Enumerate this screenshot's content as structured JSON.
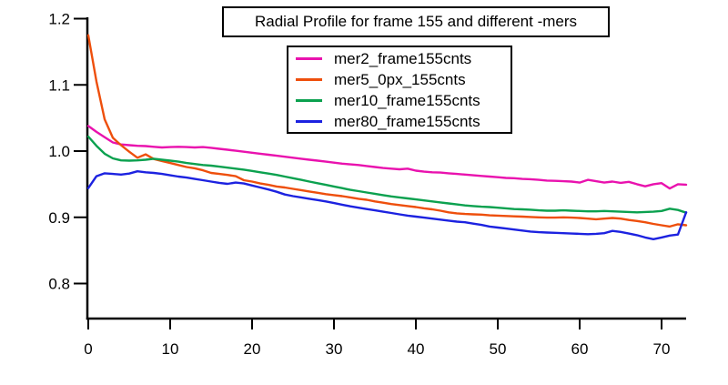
{
  "window": {
    "background": "#ffffff",
    "axis_color": "#000000",
    "text_color": "#000000"
  },
  "chart_data": {
    "type": "line",
    "title": "Radial Profile for frame 155 and different -mers",
    "xlabel": "",
    "ylabel": "",
    "xlim": [
      0,
      73
    ],
    "ylim": [
      0.747,
      1.2
    ],
    "grid": false,
    "legend_position": "top-center-inside",
    "xticks": [
      0,
      10,
      20,
      30,
      40,
      50,
      60,
      70
    ],
    "xtick_labels": [
      "0",
      "10",
      "20",
      "30",
      "40",
      "50",
      "60",
      "70"
    ],
    "yticks": [
      0.8,
      0.9,
      1.0,
      1.1,
      1.2
    ],
    "ytick_labels": [
      "0.8",
      "0.9",
      "1.0",
      "1.1",
      "1.2"
    ],
    "x": [
      0,
      1,
      2,
      3,
      4,
      5,
      6,
      7,
      8,
      9,
      10,
      11,
      12,
      13,
      14,
      15,
      16,
      17,
      18,
      19,
      20,
      21,
      22,
      23,
      24,
      25,
      26,
      27,
      28,
      29,
      30,
      31,
      32,
      33,
      34,
      35,
      36,
      37,
      38,
      39,
      40,
      41,
      42,
      43,
      44,
      45,
      46,
      47,
      48,
      49,
      50,
      51,
      52,
      53,
      54,
      55,
      56,
      57,
      58,
      59,
      60,
      61,
      62,
      63,
      64,
      65,
      66,
      67,
      68,
      69,
      70,
      71,
      72,
      73
    ],
    "series": [
      {
        "name": "mer2_frame155cnts",
        "color": "#E912AE",
        "values": [
          1.038,
          1.029,
          1.021,
          1.013,
          1.01,
          1.009,
          1.008,
          1.0075,
          1.0065,
          1.0055,
          1.006,
          1.0065,
          1.006,
          1.0055,
          1.006,
          1.005,
          1.0035,
          1.002,
          1.0005,
          0.999,
          0.9975,
          0.996,
          0.9945,
          0.993,
          0.9915,
          0.99,
          0.9885,
          0.987,
          0.9855,
          0.984,
          0.9825,
          0.981,
          0.98,
          0.979,
          0.9775,
          0.976,
          0.9745,
          0.9735,
          0.9725,
          0.9735,
          0.9705,
          0.969,
          0.968,
          0.9675,
          0.9665,
          0.9655,
          0.9645,
          0.9635,
          0.9625,
          0.9615,
          0.9605,
          0.9595,
          0.959,
          0.958,
          0.9575,
          0.9565,
          0.9555,
          0.955,
          0.9545,
          0.954,
          0.9525,
          0.9565,
          0.9545,
          0.9525,
          0.954,
          0.952,
          0.9535,
          0.95,
          0.9468,
          0.95,
          0.9516,
          0.9435,
          0.95,
          0.9493
        ]
      },
      {
        "name": "mer5_0px_155cnts",
        "color": "#EE4F0C",
        "values": [
          1.175,
          1.105,
          1.048,
          1.02,
          1.009,
          0.999,
          0.99,
          0.995,
          0.988,
          0.985,
          0.982,
          0.979,
          0.976,
          0.974,
          0.971,
          0.967,
          0.9655,
          0.964,
          0.962,
          0.956,
          0.954,
          0.951,
          0.949,
          0.9465,
          0.945,
          0.943,
          0.941,
          0.939,
          0.937,
          0.935,
          0.9335,
          0.932,
          0.93,
          0.928,
          0.9265,
          0.924,
          0.922,
          0.92,
          0.9185,
          0.917,
          0.9155,
          0.9135,
          0.912,
          0.91,
          0.9075,
          0.906,
          0.905,
          0.9045,
          0.904,
          0.903,
          0.9025,
          0.902,
          0.9015,
          0.901,
          0.9005,
          0.9,
          0.8995,
          0.8995,
          0.9,
          0.8995,
          0.899,
          0.898,
          0.897,
          0.898,
          0.899,
          0.898,
          0.896,
          0.8945,
          0.8925,
          0.89,
          0.888,
          0.886,
          0.8895,
          0.888
        ]
      },
      {
        "name": "mer10_frame155cnts",
        "color": "#0BA14F",
        "values": [
          1.022,
          1.008,
          0.996,
          0.989,
          0.986,
          0.9855,
          0.986,
          0.987,
          0.9885,
          0.987,
          0.9855,
          0.984,
          0.982,
          0.9805,
          0.979,
          0.978,
          0.9765,
          0.975,
          0.9735,
          0.972,
          0.97,
          0.968,
          0.966,
          0.964,
          0.9615,
          0.959,
          0.9565,
          0.954,
          0.9515,
          0.949,
          0.9465,
          0.944,
          0.9415,
          0.9395,
          0.9375,
          0.9355,
          0.9335,
          0.9315,
          0.93,
          0.9285,
          0.927,
          0.9255,
          0.924,
          0.9225,
          0.921,
          0.9195,
          0.918,
          0.917,
          0.916,
          0.9155,
          0.9145,
          0.9135,
          0.9125,
          0.912,
          0.9115,
          0.9105,
          0.91,
          0.91,
          0.9105,
          0.91,
          0.9095,
          0.909,
          0.909,
          0.9095,
          0.909,
          0.9085,
          0.908,
          0.9075,
          0.908,
          0.9085,
          0.9095,
          0.913,
          0.911,
          0.907
        ]
      },
      {
        "name": "mer80_frame155cnts",
        "color": "#1C22E0",
        "values": [
          0.944,
          0.962,
          0.9665,
          0.9655,
          0.9645,
          0.966,
          0.9695,
          0.968,
          0.967,
          0.9655,
          0.9635,
          0.9615,
          0.96,
          0.958,
          0.956,
          0.954,
          0.952,
          0.9505,
          0.9525,
          0.951,
          0.948,
          0.945,
          0.942,
          0.9385,
          0.9345,
          0.932,
          0.93,
          0.928,
          0.926,
          0.924,
          0.9215,
          0.919,
          0.9165,
          0.9145,
          0.9125,
          0.9105,
          0.9085,
          0.9065,
          0.9045,
          0.9025,
          0.901,
          0.8995,
          0.898,
          0.8965,
          0.895,
          0.8935,
          0.8925,
          0.8905,
          0.8885,
          0.886,
          0.8845,
          0.883,
          0.8815,
          0.88,
          0.8785,
          0.8775,
          0.877,
          0.8765,
          0.876,
          0.8755,
          0.875,
          0.8745,
          0.875,
          0.876,
          0.8795,
          0.878,
          0.8755,
          0.873,
          0.8695,
          0.867,
          0.8695,
          0.8725,
          0.874,
          0.9075
        ]
      }
    ]
  }
}
